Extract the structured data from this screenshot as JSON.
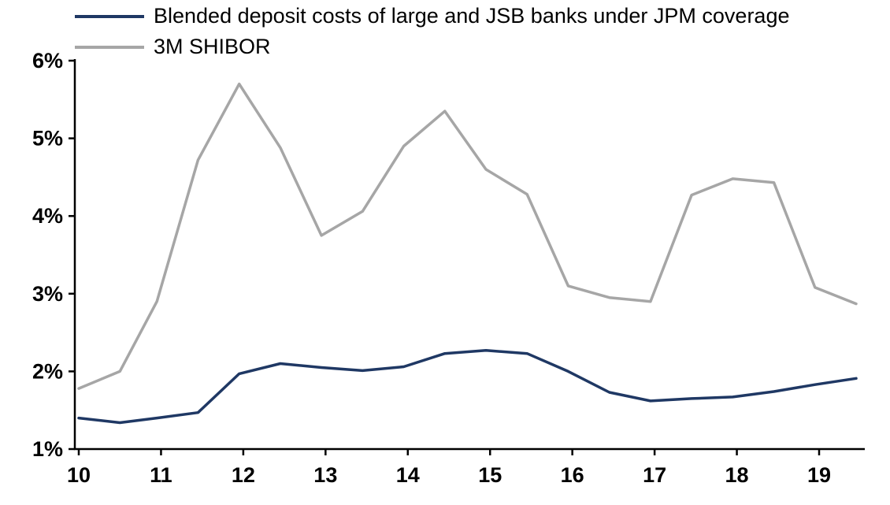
{
  "chart_data": {
    "type": "line",
    "x": [
      10.0,
      10.5,
      10.95,
      11.45,
      11.95,
      12.45,
      12.95,
      13.45,
      13.95,
      14.45,
      14.95,
      15.45,
      15.95,
      16.45,
      16.95,
      17.45,
      17.95,
      18.45,
      18.95,
      19.45
    ],
    "series": [
      {
        "name": "Blended deposit costs of large and JSB banks under JPM coverage",
        "color": "#1F3864",
        "values": [
          1.4,
          1.34,
          1.4,
          1.47,
          1.97,
          2.1,
          2.05,
          2.01,
          2.06,
          2.23,
          2.27,
          2.23,
          2.0,
          1.73,
          1.62,
          1.65,
          1.67,
          1.74,
          1.83,
          1.91
        ]
      },
      {
        "name": "3M SHIBOR",
        "color": "#A6A6A6",
        "values": [
          1.78,
          2.0,
          2.9,
          4.72,
          5.7,
          4.88,
          3.75,
          4.06,
          4.9,
          5.35,
          4.6,
          4.28,
          3.1,
          2.95,
          2.9,
          4.27,
          4.48,
          4.43,
          3.08,
          2.87
        ]
      }
    ],
    "title": "",
    "xlabel": "",
    "ylabel": "",
    "xticks": [
      10,
      11,
      12,
      13,
      14,
      15,
      16,
      17,
      18,
      19
    ],
    "yticks": [
      "1%",
      "2%",
      "3%",
      "4%",
      "5%",
      "6%"
    ],
    "ylim": [
      1,
      6
    ],
    "xlim": [
      10,
      19.6
    ],
    "grid": false,
    "legend_position": "top-left"
  }
}
